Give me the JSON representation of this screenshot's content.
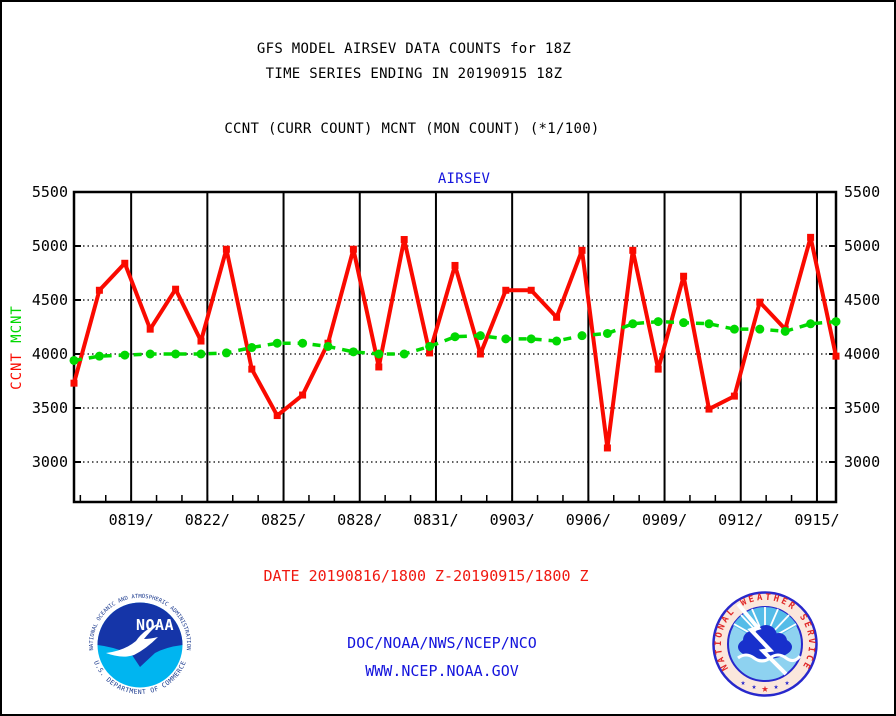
{
  "header": {
    "title_line1": "GFS MODEL AIRSEV DATA COUNTS for 18Z",
    "title_line2": "TIME SERIES ENDING IN 20190915 18Z",
    "subtitle": "CCNT (CURR COUNT) MCNT (MON COUNT) (*1/100)"
  },
  "chart_data": {
    "type": "line",
    "title": "AIRSEV",
    "title_color": "#1414dd",
    "x_dates": [
      "0816",
      "0817",
      "0818",
      "0819",
      "0820",
      "0821",
      "0822",
      "0823",
      "0824",
      "0825",
      "0826",
      "0827",
      "0828",
      "0829",
      "0830",
      "0831",
      "0901",
      "0902",
      "0903",
      "0904",
      "0905",
      "0906",
      "0907",
      "0908",
      "0909",
      "0910",
      "0911",
      "0912",
      "0913",
      "0914",
      "0915"
    ],
    "series": [
      {
        "name": "CCNT",
        "color": "#fa0a00",
        "line_style": "solid",
        "marker": "square",
        "values": [
          3730,
          4590,
          4840,
          4230,
          4600,
          4120,
          4970,
          3860,
          3430,
          3620,
          4100,
          4970,
          3880,
          5060,
          4010,
          4820,
          4000,
          4590,
          4590,
          4340,
          4960,
          3130,
          4960,
          3860,
          4720,
          3490,
          3610,
          4480,
          4230,
          5080,
          3980
        ]
      },
      {
        "name": "MCNT",
        "color": "#00d800",
        "line_style": "dashed",
        "marker": "circle",
        "values": [
          3940,
          3980,
          3990,
          4000,
          4000,
          4000,
          4010,
          4060,
          4100,
          4100,
          4070,
          4020,
          4000,
          4000,
          4070,
          4160,
          4170,
          4140,
          4140,
          4120,
          4170,
          4190,
          4280,
          4300,
          4290,
          4280,
          4230,
          4230,
          4210,
          4280,
          4300
        ]
      }
    ],
    "yticks": [
      3000,
      3500,
      4000,
      4500,
      5000,
      5500
    ],
    "ylim": [
      2630,
      5500
    ],
    "x_span_days": 30,
    "xticks": [
      {
        "label": "0819/",
        "t": 2.25
      },
      {
        "label": "0822/",
        "t": 5.25
      },
      {
        "label": "0825/",
        "t": 8.25
      },
      {
        "label": "0828/",
        "t": 11.25
      },
      {
        "label": "0831/",
        "t": 14.25
      },
      {
        "label": "0903/",
        "t": 17.25
      },
      {
        "label": "0906/",
        "t": 20.25
      },
      {
        "label": "0909/",
        "t": 23.25
      },
      {
        "label": "0912/",
        "t": 26.25
      },
      {
        "label": "0915/",
        "t": 29.25
      }
    ],
    "y_axis_left_labels": [
      {
        "text": "MCNT",
        "color": "#00d800"
      },
      {
        "text": "CCNT",
        "color": "#fa0a00"
      }
    ],
    "grid": {
      "vertical": "solid major every 3 days",
      "horizontal": "dotted every 500"
    },
    "legend_position": "none"
  },
  "footer": {
    "date_range": "DATE 20190816/1800 Z-20190915/1800 Z",
    "org": "DOC/NOAA/NWS/NCEP/NCO",
    "url": "WWW.NCEP.NOAA.GOV"
  },
  "logos": {
    "noaa": {
      "arc_top": "NATIONAL OCEANIC AND ATMOSPHERIC ADMINISTRATION",
      "arc_bottom": "U.S. DEPARTMENT OF COMMERCE",
      "center": "NOAA"
    },
    "nws": {
      "arc": "NATIONAL WEATHER SERVICE"
    }
  }
}
